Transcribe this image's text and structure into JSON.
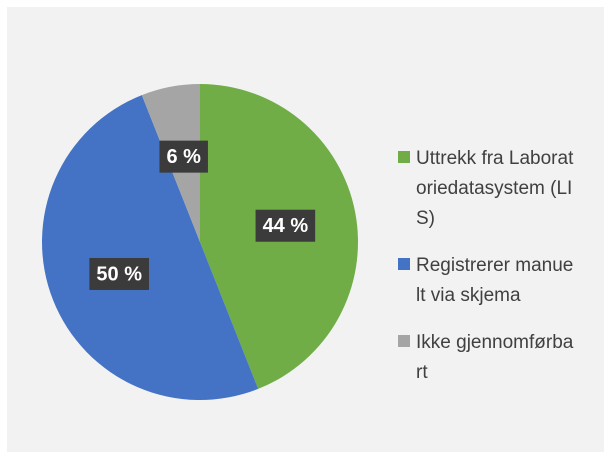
{
  "chart_data": {
    "type": "pie",
    "categories": [
      "Uttrekk fra Laboratoriedatasystem (LIS)",
      "Registrerer manuelt via skjema",
      "Ikke gjennomførbart"
    ],
    "values": [
      44,
      50,
      6
    ],
    "value_labels": [
      "44 %",
      "50 %",
      "6 %"
    ],
    "colors": [
      "#70ad47",
      "#4472c4",
      "#a5a5a5"
    ],
    "legend": "right"
  }
}
